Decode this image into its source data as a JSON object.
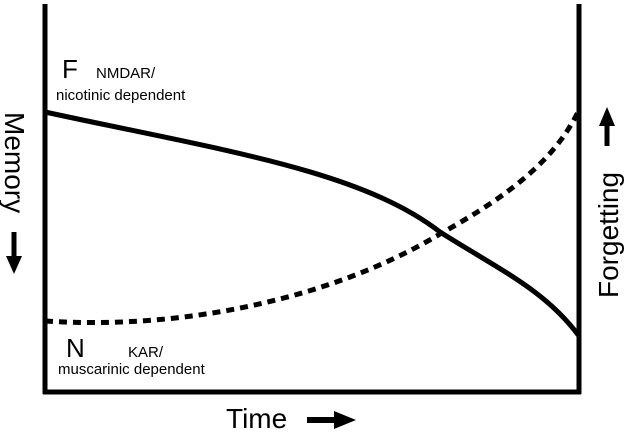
{
  "curves": {
    "f": {
      "letter": "F",
      "subscript": "NMDAR/",
      "subtitle": "nicotinic dependent",
      "style": "solid"
    },
    "n": {
      "letter": "N",
      "subscript": "KAR/",
      "subtitle": "muscarinic dependent",
      "style": "dashed"
    }
  },
  "axes": {
    "left": {
      "label": "Memory",
      "arrow": "down"
    },
    "right": {
      "label": "Forgetting",
      "arrow": "up"
    },
    "bottom": {
      "label": "Time",
      "arrow": "right"
    }
  },
  "colors": {
    "stroke": "#000000",
    "background": "#ffffff"
  }
}
